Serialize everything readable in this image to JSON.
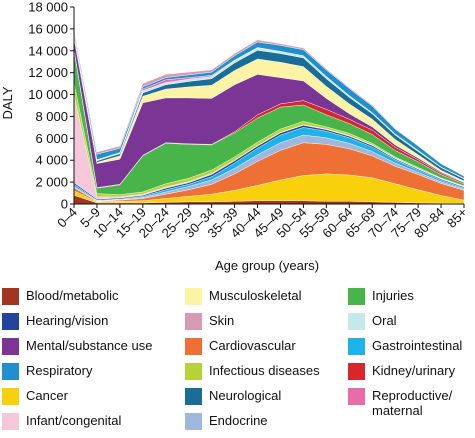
{
  "chart_data": {
    "type": "area",
    "stacked": true,
    "ylabel": "DALY",
    "xlabel": "Age group (years)",
    "ylim": [
      0,
      18000
    ],
    "yticks": [
      0,
      2000,
      4000,
      6000,
      8000,
      10000,
      12000,
      14000,
      16000,
      18000
    ],
    "ytick_labels": [
      "0",
      "2 000",
      "4 000",
      "6 000",
      "8 000",
      "10 000",
      "12 000",
      "14 000",
      "16 000",
      "18 000"
    ],
    "categories": [
      "0–4",
      "5–9",
      "10–14",
      "15–19",
      "20–24",
      "25–29",
      "30–34",
      "35–39",
      "40–44",
      "45–49",
      "50–54",
      "55–59",
      "60–64",
      "65–69",
      "70–74",
      "75–79",
      "80–84",
      "85+"
    ],
    "grid": false,
    "legend_position": "bottom",
    "series": [
      {
        "name": "Blood/metabolic",
        "color": "#a3341f",
        "values": [
          800,
          100,
          100,
          100,
          150,
          200,
          200,
          250,
          300,
          300,
          300,
          250,
          250,
          200,
          150,
          100,
          80,
          50
        ]
      },
      {
        "name": "Cancer",
        "color": "#f8d00b",
        "values": [
          400,
          100,
          150,
          200,
          350,
          500,
          700,
          1000,
          1400,
          1900,
          2300,
          2500,
          2400,
          2200,
          1700,
          1200,
          700,
          300
        ]
      },
      {
        "name": "Cardiovascular",
        "color": "#ee7034",
        "values": [
          300,
          50,
          100,
          200,
          400,
          600,
          900,
          1500,
          2200,
          2700,
          3000,
          2700,
          2400,
          2000,
          1600,
          1400,
          1100,
          900
        ]
      },
      {
        "name": "Endocrine",
        "color": "#9fb7dd",
        "values": [
          100,
          50,
          50,
          100,
          200,
          300,
          400,
          500,
          600,
          700,
          700,
          600,
          500,
          400,
          300,
          200,
          150,
          100
        ]
      },
      {
        "name": "Gastrointestinal",
        "color": "#1eb2ea",
        "values": [
          200,
          50,
          50,
          100,
          200,
          200,
          300,
          500,
          600,
          700,
          700,
          600,
          500,
          400,
          300,
          200,
          150,
          100
        ]
      },
      {
        "name": "Hearing/vision",
        "color": "#23449c",
        "values": [
          150,
          100,
          100,
          100,
          150,
          150,
          200,
          200,
          200,
          200,
          200,
          150,
          150,
          150,
          100,
          100,
          100,
          100
        ]
      },
      {
        "name": "Infant/congenital",
        "color": "#f6c7d9",
        "values": [
          8000,
          200,
          100,
          100,
          100,
          100,
          100,
          50,
          50,
          50,
          50,
          50,
          50,
          50,
          50,
          50,
          50,
          50
        ]
      },
      {
        "name": "Infectious diseases",
        "color": "#b6d234",
        "values": [
          1100,
          300,
          200,
          200,
          300,
          300,
          300,
          300,
          300,
          300,
          300,
          200,
          200,
          150,
          100,
          100,
          50,
          50
        ]
      },
      {
        "name": "Injuries",
        "color": "#47b549",
        "values": [
          3000,
          500,
          900,
          3300,
          3700,
          3100,
          2300,
          2200,
          2200,
          2000,
          1500,
          1100,
          900,
          800,
          600,
          500,
          300,
          200
        ]
      },
      {
        "name": "Kidney/urinary",
        "color": "#d7262c",
        "values": [
          100,
          50,
          50,
          50,
          50,
          50,
          50,
          100,
          300,
          300,
          400,
          500,
          400,
          400,
          300,
          200,
          150,
          100
        ]
      },
      {
        "name": "Mental/substance use",
        "color": "#7b3595",
        "values": [
          1000,
          2200,
          2300,
          4800,
          4100,
          4200,
          4200,
          4300,
          3700,
          2400,
          1800,
          1000,
          500,
          300,
          200,
          150,
          100,
          50
        ]
      },
      {
        "name": "Musculoskeletal",
        "color": "#fcf3a5",
        "values": [
          100,
          100,
          300,
          600,
          800,
          1000,
          1200,
          1300,
          1400,
          1400,
          1300,
          1100,
          900,
          700,
          500,
          300,
          150,
          100
        ]
      },
      {
        "name": "Neurological",
        "color": "#1a6d96",
        "values": [
          300,
          150,
          200,
          300,
          400,
          500,
          600,
          700,
          800,
          800,
          800,
          700,
          600,
          500,
          400,
          300,
          250,
          200
        ]
      },
      {
        "name": "Oral",
        "color": "#c5e8ec",
        "values": [
          100,
          100,
          100,
          200,
          200,
          200,
          200,
          200,
          200,
          200,
          200,
          200,
          150,
          100,
          100,
          100,
          50,
          50
        ]
      },
      {
        "name": "Reproductive/ maternal",
        "color": "#ea6ba9",
        "values": [
          0,
          0,
          0,
          150,
          250,
          150,
          100,
          50,
          50,
          0,
          0,
          0,
          0,
          0,
          0,
          0,
          0,
          0
        ]
      },
      {
        "name": "Respiratory",
        "color": "#1f8fcd",
        "values": [
          300,
          500,
          400,
          200,
          200,
          250,
          300,
          400,
          500,
          550,
          550,
          600,
          650,
          600,
          450,
          400,
          300,
          200
        ]
      },
      {
        "name": "Skin",
        "color": "#d69ab2",
        "values": [
          100,
          200,
          200,
          300,
          300,
          250,
          200,
          200,
          200,
          150,
          150,
          100,
          100,
          100,
          50,
          50,
          30,
          20
        ]
      }
    ],
    "legend": [
      {
        "name": "Blood/metabolic",
        "color": "#a3341f"
      },
      {
        "name": "Musculoskeletal",
        "color": "#fcf3a5"
      },
      {
        "name": "Injuries",
        "color": "#47b549"
      },
      {
        "name": "Hearing/vision",
        "color": "#23449c"
      },
      {
        "name": "Skin",
        "color": "#d69ab2"
      },
      {
        "name": "Oral",
        "color": "#c5e8ec"
      },
      {
        "name": "Mental/substance use",
        "color": "#7b3595"
      },
      {
        "name": "Cardiovascular",
        "color": "#ee7034"
      },
      {
        "name": "Gastrointestinal",
        "color": "#1eb2ea"
      },
      {
        "name": "Respiratory",
        "color": "#1f8fcd"
      },
      {
        "name": "Infectious diseases",
        "color": "#b6d234"
      },
      {
        "name": "Kidney/urinary",
        "color": "#d7262c"
      },
      {
        "name": "Cancer",
        "color": "#f8d00b"
      },
      {
        "name": "Neurological",
        "color": "#1a6d96"
      },
      {
        "name": "Reproductive/\nmaternal",
        "color": "#ea6ba9"
      },
      {
        "name": "Infant/congenital",
        "color": "#f6c7d9"
      },
      {
        "name": "Endocrine",
        "color": "#9fb7dd"
      }
    ]
  }
}
